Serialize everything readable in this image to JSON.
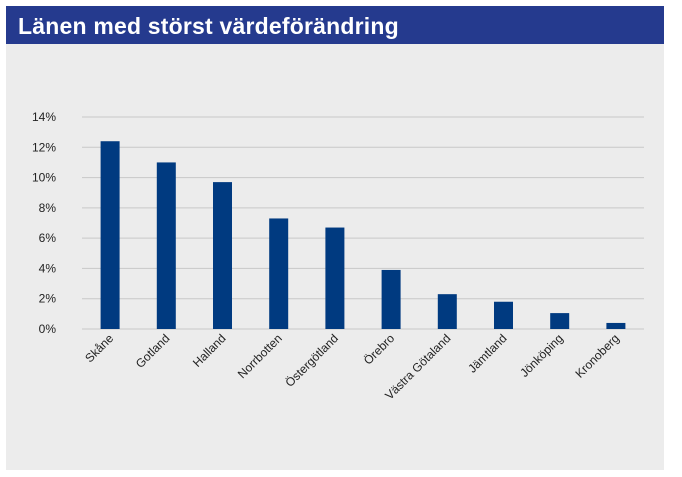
{
  "header": {
    "title": "Länen med störst värdeförändring"
  },
  "colors": {
    "header_bg": "#253a8e",
    "bar": "#003a80",
    "panel_bg": "#ececec",
    "grid": "#c8c8c8"
  },
  "chart_data": {
    "type": "bar",
    "title": "",
    "xlabel": "",
    "ylabel": "",
    "ylim": [
      0,
      14
    ],
    "grid": true,
    "y_ticks": [
      "0%",
      "2%",
      "4%",
      "6%",
      "8%",
      "10%",
      "12%",
      "14%"
    ],
    "categories": [
      "Skåne",
      "Gotland",
      "Halland",
      "Norrbotten",
      "Östergötland",
      "Örebro",
      "Västra Götaland",
      "Jämtland",
      "Jönköping",
      "Kronoberg"
    ],
    "values": [
      12.4,
      11.0,
      9.7,
      7.3,
      6.7,
      3.9,
      2.3,
      1.8,
      1.05,
      0.4
    ]
  }
}
